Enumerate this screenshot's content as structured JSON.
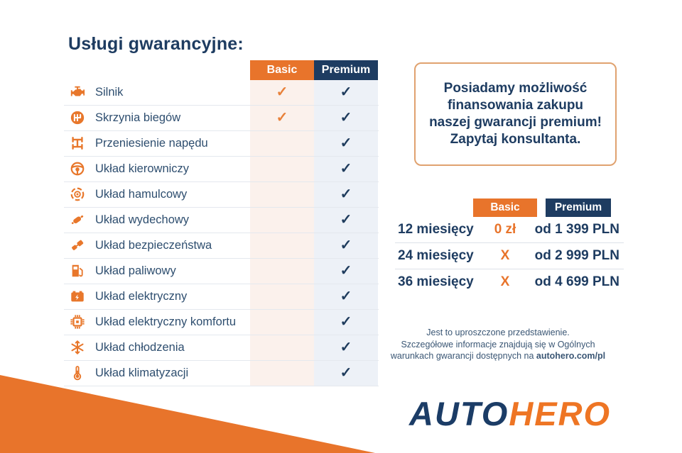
{
  "page": {
    "heading": "Usługi gwarancyjne:"
  },
  "colors": {
    "orange": "#E8742B",
    "navy": "#1E3C61",
    "label_text": "#2E4E6F",
    "basic_column_tint": "#FBF1EC",
    "premium_column_tint": "#EDF1F7",
    "promo_border": "#E0A26F",
    "logo_navy": "#1B3C66",
    "logo_orange": "#EE7524"
  },
  "services_table": {
    "columns": [
      {
        "label": "Basic"
      },
      {
        "label": "Premium"
      }
    ],
    "check_glyph": "✓",
    "rows": [
      {
        "icon": "engine-icon",
        "label": "Silnik",
        "basic": true,
        "premium": true
      },
      {
        "icon": "gearbox-icon",
        "label": "Skrzynia biegów",
        "basic": true,
        "premium": true
      },
      {
        "icon": "drivetrain-icon",
        "label": "Przeniesienie napędu",
        "basic": false,
        "premium": true
      },
      {
        "icon": "steering-wheel-icon",
        "label": "Układ kierowniczy",
        "basic": false,
        "premium": true
      },
      {
        "icon": "brake-disc-icon",
        "label": "Układ hamulcowy",
        "basic": false,
        "premium": true
      },
      {
        "icon": "exhaust-icon",
        "label": "Układ wydechowy",
        "basic": false,
        "premium": true
      },
      {
        "icon": "seatbelt-icon",
        "label": "Układ bezpieczeństwa",
        "basic": false,
        "premium": true
      },
      {
        "icon": "fuel-pump-icon",
        "label": "Układ paliwowy",
        "basic": false,
        "premium": true
      },
      {
        "icon": "battery-icon",
        "label": "Układ elektryczny",
        "basic": false,
        "premium": true
      },
      {
        "icon": "chip-icon",
        "label": "Układ elektryczny komfortu",
        "basic": false,
        "premium": true
      },
      {
        "icon": "snowflake-icon",
        "label": "Układ chłodzenia",
        "basic": false,
        "premium": true
      },
      {
        "icon": "thermometer-icon",
        "label": "Układ klimatyzacji",
        "basic": false,
        "premium": true
      }
    ]
  },
  "promo_box": {
    "lines": [
      "Posiadamy możliwość",
      "finansowania zakupu",
      "naszej gwarancji premium!",
      "Zapytaj konsultanta."
    ]
  },
  "pricing_table": {
    "columns": [
      {
        "label": "Basic"
      },
      {
        "label": "Premium"
      }
    ],
    "rows": [
      {
        "period": "12 miesięcy",
        "basic": "0 zł",
        "premium": "od 1 399 PLN"
      },
      {
        "period": "24 miesięcy",
        "basic": "X",
        "premium": "od 2 999 PLN"
      },
      {
        "period": "36 miesięcy",
        "basic": "X",
        "premium": "od 4 699 PLN"
      }
    ]
  },
  "disclaimer": {
    "line1": "Jest to uproszczone przedstawienie.",
    "line2": "Szczegółowe informacje znajdują się w Ogólnych",
    "line3_prefix": "warunkach gwarancji dostępnych na ",
    "line3_bold": "autohero.com/pl"
  },
  "logo": {
    "part1": "AUTO",
    "part2": "HERO"
  }
}
